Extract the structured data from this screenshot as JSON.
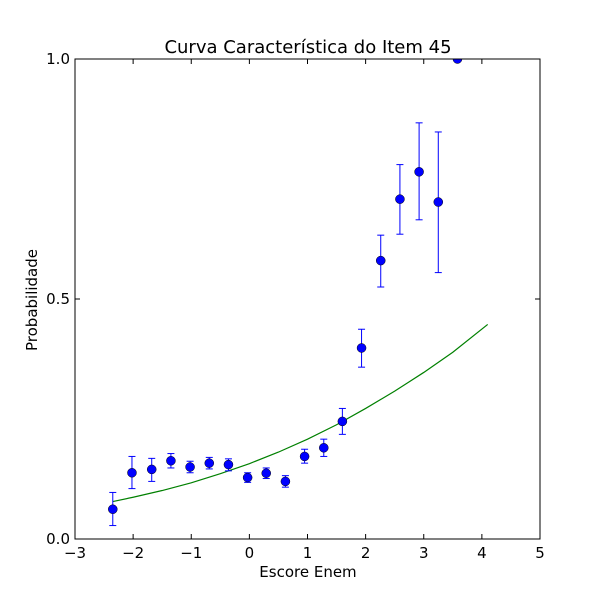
{
  "chart_data": {
    "type": "scatter",
    "title": "Curva Característica do Item 45",
    "xlabel": "Escore Enem",
    "ylabel": "Probabilidade",
    "xlim": [
      -3,
      5
    ],
    "ylim": [
      0.0,
      1.0
    ],
    "xticks": [
      -3,
      -2,
      -1,
      0,
      1,
      2,
      3,
      4,
      5
    ],
    "xtick_labels": [
      "−3",
      "−2",
      "−1",
      "0",
      "1",
      "2",
      "3",
      "4",
      "5"
    ],
    "yticks": [
      0.0,
      0.5,
      1.0
    ],
    "ytick_labels": [
      "0.0",
      "0.5",
      "1.0"
    ],
    "grid": false,
    "legend": "none",
    "colors": {
      "points": "#0000ff",
      "errorbars": "#0000ff",
      "curve": "#008000"
    },
    "series": [
      {
        "kind": "errorbar",
        "x": [
          -2.35,
          -2.02,
          -1.68,
          -1.35,
          -1.02,
          -0.69,
          -0.36,
          -0.03,
          0.29,
          0.62,
          0.95,
          1.28,
          1.6,
          1.93,
          2.26,
          2.59,
          2.92,
          3.25,
          3.58
        ],
        "y": [
          0.062,
          0.138,
          0.145,
          0.163,
          0.15,
          0.158,
          0.155,
          0.128,
          0.137,
          0.12,
          0.172,
          0.19,
          0.245,
          0.398,
          0.58,
          0.708,
          0.765,
          0.702,
          1.0
        ],
        "ylow": [
          0.028,
          0.105,
          0.12,
          0.148,
          0.138,
          0.146,
          0.142,
          0.118,
          0.126,
          0.108,
          0.158,
          0.172,
          0.218,
          0.358,
          0.525,
          0.635,
          0.665,
          0.555,
          1.0
        ],
        "yhigh": [
          0.097,
          0.172,
          0.168,
          0.178,
          0.162,
          0.17,
          0.167,
          0.138,
          0.148,
          0.132,
          0.187,
          0.208,
          0.272,
          0.437,
          0.633,
          0.78,
          0.867,
          0.848,
          1.0
        ]
      },
      {
        "kind": "line",
        "x": [
          -2.35,
          -2.0,
          -1.5,
          -1.0,
          -0.5,
          0.0,
          0.5,
          1.0,
          1.5,
          2.0,
          2.5,
          3.0,
          3.5,
          4.1
        ],
        "y": [
          0.078,
          0.087,
          0.101,
          0.117,
          0.136,
          0.157,
          0.181,
          0.208,
          0.238,
          0.272,
          0.308,
          0.347,
          0.389,
          0.447
        ]
      }
    ]
  }
}
